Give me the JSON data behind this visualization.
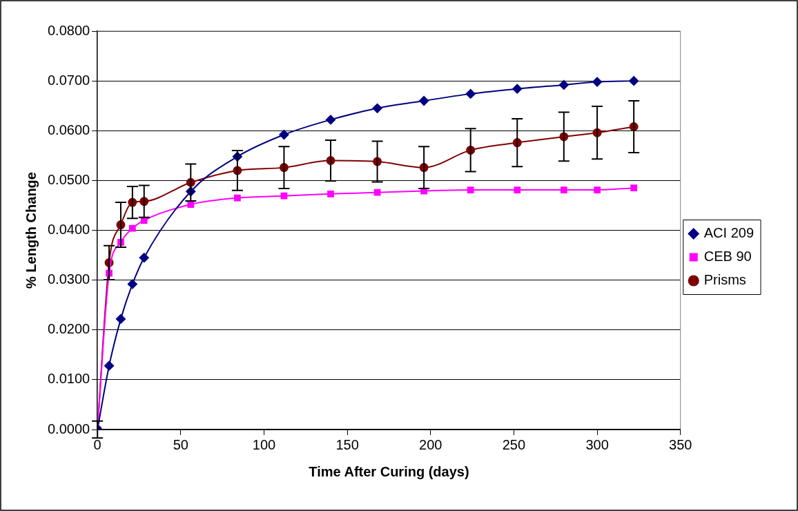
{
  "chart_data": {
    "type": "line",
    "xlabel": "Time After Curing (days)",
    "ylabel": "% Length Change",
    "xlim": [
      0,
      350
    ],
    "xticks": [
      0,
      50,
      100,
      150,
      200,
      250,
      300,
      350
    ],
    "ylim": [
      0,
      0.08
    ],
    "yticks": [
      {
        "value": 0,
        "label": "0.0000"
      },
      {
        "value": 0.01,
        "label": "0.0100"
      },
      {
        "value": 0.02,
        "label": "0.0200"
      },
      {
        "value": 0.03,
        "label": "0.0300"
      },
      {
        "value": 0.04,
        "label": "0.0400"
      },
      {
        "value": 0.05,
        "label": "0.0500"
      },
      {
        "value": 0.06,
        "label": "0.0600"
      },
      {
        "value": 0.07,
        "label": "0.0700"
      },
      {
        "value": 0.08,
        "label": "0.0800"
      }
    ],
    "grid": "y",
    "legend": "right",
    "x": [
      0,
      7,
      14,
      21,
      28,
      56,
      84,
      112,
      140,
      168,
      196,
      224,
      252,
      280,
      300,
      322
    ],
    "series": [
      {
        "name": "ACI 209",
        "color": "#000080",
        "marker": "diamond",
        "values": [
          0,
          0.0128,
          0.0222,
          0.0292,
          0.0345,
          0.0478,
          0.0548,
          0.0592,
          0.0622,
          0.0645,
          0.066,
          0.0674,
          0.0684,
          0.0692,
          0.0698,
          0.07
        ]
      },
      {
        "name": "CEB 90",
        "color": "#ff00ff",
        "marker": "square",
        "values": [
          0,
          0.0314,
          0.0376,
          0.0404,
          0.042,
          0.0452,
          0.0465,
          0.0469,
          0.0473,
          0.0476,
          0.0479,
          0.0481,
          0.0481,
          0.0481,
          0.0481,
          0.0485
        ]
      },
      {
        "name": "Prisms",
        "color": "#800000",
        "marker": "circle",
        "values": [
          0,
          0.0335,
          0.0411,
          0.0456,
          0.0458,
          0.0496,
          0.052,
          0.0526,
          0.054,
          0.0538,
          0.0526,
          0.0561,
          0.0576,
          0.0588,
          0.0596,
          0.0608
        ],
        "errors": [
          0.0017,
          0.0034,
          0.0045,
          0.0032,
          0.0032,
          0.0037,
          0.004,
          0.0042,
          0.0041,
          0.0041,
          0.0042,
          0.0043,
          0.0048,
          0.0049,
          0.0053,
          0.0052
        ]
      }
    ]
  }
}
